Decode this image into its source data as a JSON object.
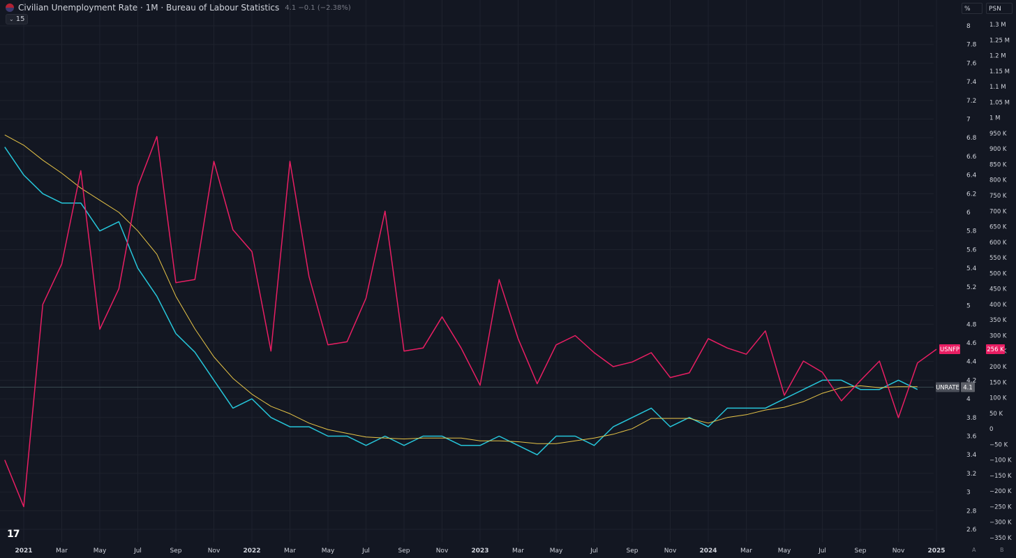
{
  "header": {
    "title": "Civilian Unemployment Rate · 1M · Bureau of Labour Statistics",
    "last_value": "4.1",
    "change": "−0.1 (−2.38%)",
    "indicator_length": "15",
    "indicator_chevron": "⌄"
  },
  "axis_headers": {
    "left": "%",
    "right": "PSN"
  },
  "bottom_badges": {
    "a": "A",
    "b": "B"
  },
  "logo": "17",
  "colors": {
    "background": "#131722",
    "grid": "#1e222d",
    "unrate": "#26c6da",
    "ma": "#e8c547",
    "usnfp": "#e91e63",
    "axis_text": "#d1d4dc"
  },
  "chart_data": {
    "type": "line",
    "x_axis": {
      "start": "2020-12",
      "end": "2025-01",
      "tick_labels": [
        {
          "date": "2021-01",
          "label": "2021",
          "bold": true
        },
        {
          "date": "2021-03",
          "label": "Mar"
        },
        {
          "date": "2021-05",
          "label": "May"
        },
        {
          "date": "2021-07",
          "label": "Jul"
        },
        {
          "date": "2021-09",
          "label": "Sep"
        },
        {
          "date": "2021-11",
          "label": "Nov"
        },
        {
          "date": "2022-01",
          "label": "2022",
          "bold": true
        },
        {
          "date": "2022-03",
          "label": "Mar"
        },
        {
          "date": "2022-05",
          "label": "May"
        },
        {
          "date": "2022-07",
          "label": "Jul"
        },
        {
          "date": "2022-09",
          "label": "Sep"
        },
        {
          "date": "2022-11",
          "label": "Nov"
        },
        {
          "date": "2023-01",
          "label": "2023",
          "bold": true
        },
        {
          "date": "2023-03",
          "label": "Mar"
        },
        {
          "date": "2023-05",
          "label": "May"
        },
        {
          "date": "2023-07",
          "label": "Jul"
        },
        {
          "date": "2023-09",
          "label": "Sep"
        },
        {
          "date": "2023-11",
          "label": "Nov"
        },
        {
          "date": "2024-01",
          "label": "2024",
          "bold": true
        },
        {
          "date": "2024-03",
          "label": "Mar"
        },
        {
          "date": "2024-05",
          "label": "May"
        },
        {
          "date": "2024-07",
          "label": "Jul"
        },
        {
          "date": "2024-09",
          "label": "Sep"
        },
        {
          "date": "2024-11",
          "label": "Nov"
        },
        {
          "date": "2025-01",
          "label": "2025",
          "bold": true
        }
      ]
    },
    "left_axis": {
      "unit": "%",
      "range": [
        2.5,
        8.25
      ],
      "ticks": [
        {
          "v": 2.6,
          "label": "2.6"
        },
        {
          "v": 2.8,
          "label": "2.8"
        },
        {
          "v": 3.0,
          "label": "3"
        },
        {
          "v": 3.2,
          "label": "3.2"
        },
        {
          "v": 3.4,
          "label": "3.4"
        },
        {
          "v": 3.6,
          "label": "3.6"
        },
        {
          "v": 3.8,
          "label": "3.8"
        },
        {
          "v": 4.0,
          "label": "4"
        },
        {
          "v": 4.2,
          "label": "4.2"
        },
        {
          "v": 4.4,
          "label": "4.4"
        },
        {
          "v": 4.6,
          "label": "4.6"
        },
        {
          "v": 4.8,
          "label": "4.8"
        },
        {
          "v": 5.0,
          "label": "5"
        },
        {
          "v": 5.2,
          "label": "5.2"
        },
        {
          "v": 5.4,
          "label": "5.4"
        },
        {
          "v": 5.6,
          "label": "5.6"
        },
        {
          "v": 5.8,
          "label": "5.8"
        },
        {
          "v": 6.0,
          "label": "6"
        },
        {
          "v": 6.2,
          "label": "6.2"
        },
        {
          "v": 6.4,
          "label": "6.4"
        },
        {
          "v": 6.6,
          "label": "6.6"
        },
        {
          "v": 6.8,
          "label": "6.8"
        },
        {
          "v": 7.0,
          "label": "7"
        },
        {
          "v": 7.2,
          "label": "7.2"
        },
        {
          "v": 7.4,
          "label": "7.4"
        },
        {
          "v": 7.6,
          "label": "7.6"
        },
        {
          "v": 7.8,
          "label": "7.8"
        },
        {
          "v": 8.0,
          "label": "8"
        }
      ]
    },
    "right_axis": {
      "unit": "PSN",
      "range": [
        -350000,
        1335000
      ],
      "ticks": [
        {
          "v": -350000,
          "label": "−350 K"
        },
        {
          "v": -300000,
          "label": "−300 K"
        },
        {
          "v": -250000,
          "label": "−250 K"
        },
        {
          "v": -200000,
          "label": "−200 K"
        },
        {
          "v": -150000,
          "label": "−150 K"
        },
        {
          "v": -100000,
          "label": "−100 K"
        },
        {
          "v": -50000,
          "label": "−50 K"
        },
        {
          "v": 0,
          "label": "0"
        },
        {
          "v": 50000,
          "label": "50 K"
        },
        {
          "v": 100000,
          "label": "100 K"
        },
        {
          "v": 150000,
          "label": "150 K"
        },
        {
          "v": 200000,
          "label": "200 K"
        },
        {
          "v": 250000,
          "label": "250 K"
        },
        {
          "v": 300000,
          "label": "300 K"
        },
        {
          "v": 350000,
          "label": "350 K"
        },
        {
          "v": 400000,
          "label": "400 K"
        },
        {
          "v": 450000,
          "label": "450 K"
        },
        {
          "v": 500000,
          "label": "500 K"
        },
        {
          "v": 550000,
          "label": "550 K"
        },
        {
          "v": 600000,
          "label": "600 K"
        },
        {
          "v": 650000,
          "label": "650 K"
        },
        {
          "v": 700000,
          "label": "700 K"
        },
        {
          "v": 750000,
          "label": "750 K"
        },
        {
          "v": 800000,
          "label": "800 K"
        },
        {
          "v": 850000,
          "label": "850 K"
        },
        {
          "v": 900000,
          "label": "900 K"
        },
        {
          "v": 950000,
          "label": "950 K"
        },
        {
          "v": 1000000,
          "label": "1 M"
        },
        {
          "v": 1050000,
          "label": "1.05 M"
        },
        {
          "v": 1100000,
          "label": "1.1 M"
        },
        {
          "v": 1150000,
          "label": "1.15 M"
        },
        {
          "v": 1200000,
          "label": "1.2 M"
        },
        {
          "v": 1250000,
          "label": "1.25 M"
        },
        {
          "v": 1300000,
          "label": "1.3 M"
        }
      ]
    },
    "series": [
      {
        "name": "UNRATE",
        "axis": "left",
        "color": "#26c6da",
        "last_label": "4.1",
        "points": [
          [
            "2020-12",
            6.7
          ],
          [
            "2021-01",
            6.4
          ],
          [
            "2021-02",
            6.2
          ],
          [
            "2021-03",
            6.1
          ],
          [
            "2021-04",
            6.1
          ],
          [
            "2021-05",
            5.8
          ],
          [
            "2021-06",
            5.9
          ],
          [
            "2021-07",
            5.4
          ],
          [
            "2021-08",
            5.1
          ],
          [
            "2021-09",
            4.7
          ],
          [
            "2021-10",
            4.5
          ],
          [
            "2021-11",
            4.2
          ],
          [
            "2021-12",
            3.9
          ],
          [
            "2022-01",
            4.0
          ],
          [
            "2022-02",
            3.8
          ],
          [
            "2022-03",
            3.7
          ],
          [
            "2022-04",
            3.7
          ],
          [
            "2022-05",
            3.6
          ],
          [
            "2022-06",
            3.6
          ],
          [
            "2022-07",
            3.5
          ],
          [
            "2022-08",
            3.6
          ],
          [
            "2022-09",
            3.5
          ],
          [
            "2022-10",
            3.6
          ],
          [
            "2022-11",
            3.6
          ],
          [
            "2022-12",
            3.5
          ],
          [
            "2023-01",
            3.5
          ],
          [
            "2023-02",
            3.6
          ],
          [
            "2023-03",
            3.5
          ],
          [
            "2023-04",
            3.4
          ],
          [
            "2023-05",
            3.6
          ],
          [
            "2023-06",
            3.6
          ],
          [
            "2023-07",
            3.5
          ],
          [
            "2023-08",
            3.7
          ],
          [
            "2023-09",
            3.8
          ],
          [
            "2023-10",
            3.9
          ],
          [
            "2023-11",
            3.7
          ],
          [
            "2023-12",
            3.8
          ],
          [
            "2024-01",
            3.7
          ],
          [
            "2024-02",
            3.9
          ],
          [
            "2024-03",
            3.9
          ],
          [
            "2024-04",
            3.9
          ],
          [
            "2024-05",
            4.0
          ],
          [
            "2024-06",
            4.1
          ],
          [
            "2024-07",
            4.2
          ],
          [
            "2024-08",
            4.2
          ],
          [
            "2024-09",
            4.1
          ],
          [
            "2024-10",
            4.1
          ],
          [
            "2024-11",
            4.2
          ],
          [
            "2024-12",
            4.1
          ]
        ]
      },
      {
        "name": "",
        "axis": "left",
        "color": "#e8c547",
        "points": [
          [
            "2020-12",
            6.83
          ],
          [
            "2021-01",
            6.72
          ],
          [
            "2021-02",
            6.56
          ],
          [
            "2021-03",
            6.42
          ],
          [
            "2021-04",
            6.26
          ],
          [
            "2021-05",
            6.13
          ],
          [
            "2021-06",
            6.0
          ],
          [
            "2021-07",
            5.8
          ],
          [
            "2021-08",
            5.55
          ],
          [
            "2021-09",
            5.1
          ],
          [
            "2021-10",
            4.75
          ],
          [
            "2021-11",
            4.45
          ],
          [
            "2021-12",
            4.22
          ],
          [
            "2022-01",
            4.05
          ],
          [
            "2022-02",
            3.92
          ],
          [
            "2022-03",
            3.84
          ],
          [
            "2022-04",
            3.74
          ],
          [
            "2022-05",
            3.67
          ],
          [
            "2022-06",
            3.63
          ],
          [
            "2022-07",
            3.59
          ],
          [
            "2022-08",
            3.58
          ],
          [
            "2022-09",
            3.57
          ],
          [
            "2022-10",
            3.58
          ],
          [
            "2022-11",
            3.58
          ],
          [
            "2022-12",
            3.58
          ],
          [
            "2023-01",
            3.55
          ],
          [
            "2023-02",
            3.55
          ],
          [
            "2023-03",
            3.54
          ],
          [
            "2023-04",
            3.52
          ],
          [
            "2023-05",
            3.52
          ],
          [
            "2023-06",
            3.55
          ],
          [
            "2023-07",
            3.58
          ],
          [
            "2023-08",
            3.62
          ],
          [
            "2023-09",
            3.68
          ],
          [
            "2023-10",
            3.79
          ],
          [
            "2023-11",
            3.79
          ],
          [
            "2023-12",
            3.79
          ],
          [
            "2024-01",
            3.74
          ],
          [
            "2024-02",
            3.8
          ],
          [
            "2024-03",
            3.83
          ],
          [
            "2024-04",
            3.88
          ],
          [
            "2024-05",
            3.91
          ],
          [
            "2024-06",
            3.97
          ],
          [
            "2024-07",
            4.06
          ],
          [
            "2024-08",
            4.12
          ],
          [
            "2024-09",
            4.14
          ],
          [
            "2024-10",
            4.12
          ],
          [
            "2024-11",
            4.13
          ],
          [
            "2024-12",
            4.13
          ]
        ]
      },
      {
        "name": "USNFP",
        "axis": "right",
        "color": "#e91e63",
        "last_label": "256 K",
        "points": [
          [
            "2020-12",
            -100000
          ],
          [
            "2021-01",
            -250000
          ],
          [
            "2021-02",
            400000
          ],
          [
            "2021-03",
            530000
          ],
          [
            "2021-04",
            830000
          ],
          [
            "2021-05",
            320000
          ],
          [
            "2021-06",
            450000
          ],
          [
            "2021-07",
            780000
          ],
          [
            "2021-08",
            940000
          ],
          [
            "2021-09",
            470000
          ],
          [
            "2021-10",
            480000
          ],
          [
            "2021-11",
            860000
          ],
          [
            "2021-12",
            640000
          ],
          [
            "2022-01",
            570000
          ],
          [
            "2022-02",
            250000
          ],
          [
            "2022-03",
            860000
          ],
          [
            "2022-04",
            490000
          ],
          [
            "2022-05",
            270000
          ],
          [
            "2022-06",
            280000
          ],
          [
            "2022-07",
            420000
          ],
          [
            "2022-08",
            700000
          ],
          [
            "2022-09",
            250000
          ],
          [
            "2022-10",
            260000
          ],
          [
            "2022-11",
            360000
          ],
          [
            "2022-12",
            260000
          ],
          [
            "2023-01",
            140000
          ],
          [
            "2023-02",
            480000
          ],
          [
            "2023-03",
            290000
          ],
          [
            "2023-04",
            145000
          ],
          [
            "2023-05",
            270000
          ],
          [
            "2023-06",
            300000
          ],
          [
            "2023-07",
            245000
          ],
          [
            "2023-08",
            200000
          ],
          [
            "2023-09",
            215000
          ],
          [
            "2023-10",
            245000
          ],
          [
            "2023-11",
            165000
          ],
          [
            "2023-12",
            180000
          ],
          [
            "2024-01",
            290000
          ],
          [
            "2024-02",
            260000
          ],
          [
            "2024-03",
            240000
          ],
          [
            "2024-04",
            315000
          ],
          [
            "2024-05",
            108000
          ],
          [
            "2024-06",
            218000
          ],
          [
            "2024-07",
            182000
          ],
          [
            "2024-08",
            90000
          ],
          [
            "2024-09",
            155000
          ],
          [
            "2024-10",
            218000
          ],
          [
            "2024-11",
            36000
          ],
          [
            "2024-12",
            212000
          ],
          [
            "2025-01",
            256000
          ]
        ]
      }
    ],
    "horizontal_line": {
      "axis": "left",
      "value": 4.125,
      "color": "#3a4a50"
    }
  }
}
